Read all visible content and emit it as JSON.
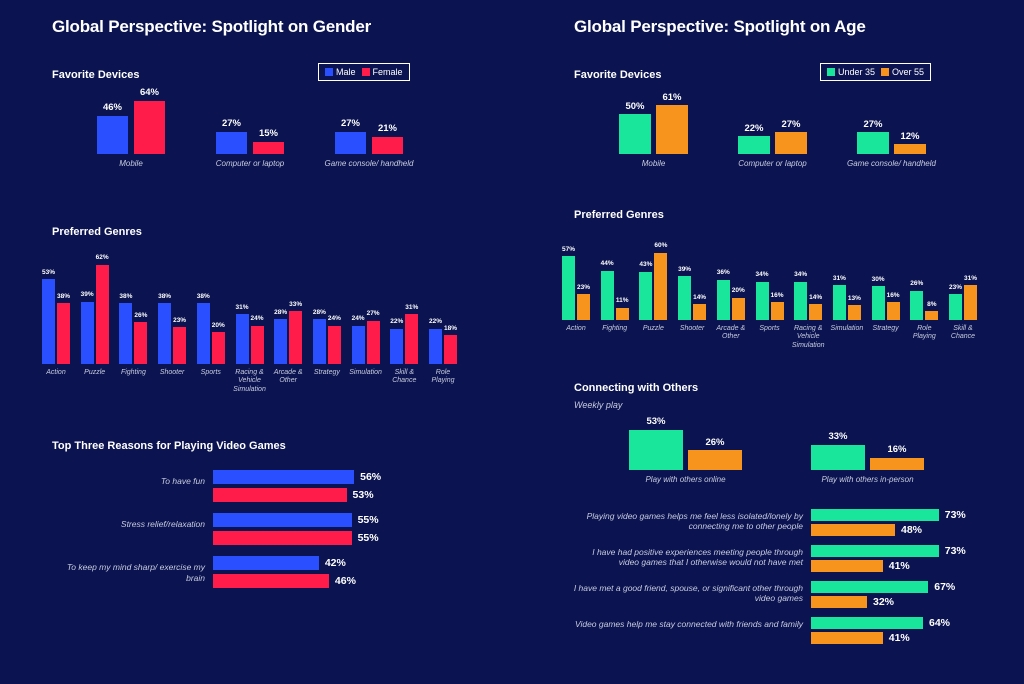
{
  "colors": {
    "background": "#0b1450",
    "male": "#2a4fff",
    "female": "#ff1c4a",
    "under35": "#19e69b",
    "over55": "#f7941e"
  },
  "left": {
    "title": "Global Perspective: Spotlight on Gender",
    "legend": [
      "Male",
      "Female"
    ],
    "devices_title": "Favorite Devices",
    "genres_title": "Preferred Genres",
    "reasons_title": "Top Three Reasons for Playing Video Games"
  },
  "right": {
    "title": "Global Perspective: Spotlight on Age",
    "legend": [
      "Under 35",
      "Over 55"
    ],
    "devices_title": "Favorite Devices",
    "genres_title": "Preferred Genres",
    "connect_title": "Connecting with Others",
    "connect_subtitle": "Weekly play"
  },
  "chart_data": [
    {
      "id": "gender-devices",
      "type": "bar",
      "title": "Favorite Devices",
      "categories": [
        "Mobile",
        "Computer or laptop",
        "Game console/ handheld"
      ],
      "series": [
        {
          "name": "Male",
          "values": [
            46,
            27,
            27
          ]
        },
        {
          "name": "Female",
          "values": [
            64,
            15,
            21
          ]
        }
      ],
      "unit": "%",
      "legend": "top-right"
    },
    {
      "id": "gender-genres",
      "type": "bar",
      "title": "Preferred Genres",
      "categories": [
        "Action",
        "Puzzle",
        "Fighting",
        "Shooter",
        "Sports",
        "Racing & Vehicle Simulation",
        "Arcade & Other",
        "Strategy",
        "Simulation",
        "Skill & Chance",
        "Role Playing"
      ],
      "series": [
        {
          "name": "Male",
          "values": [
            53,
            39,
            38,
            38,
            38,
            31,
            28,
            28,
            24,
            22,
            22
          ]
        },
        {
          "name": "Female",
          "values": [
            38,
            62,
            26,
            23,
            20,
            24,
            33,
            24,
            27,
            31,
            18
          ]
        }
      ],
      "unit": "%"
    },
    {
      "id": "gender-reasons",
      "type": "bar",
      "orientation": "horizontal",
      "title": "Top Three Reasons for Playing Video Games",
      "categories": [
        "To have fun",
        "Stress relief/relaxation",
        "To keep my mind sharp/ exercise my brain"
      ],
      "series": [
        {
          "name": "Male",
          "values": [
            56,
            55,
            42
          ]
        },
        {
          "name": "Female",
          "values": [
            53,
            55,
            46
          ]
        }
      ],
      "unit": "%"
    },
    {
      "id": "age-devices",
      "type": "bar",
      "title": "Favorite Devices",
      "categories": [
        "Mobile",
        "Computer or laptop",
        "Game console/ handheld"
      ],
      "series": [
        {
          "name": "Under 35",
          "values": [
            50,
            22,
            27
          ]
        },
        {
          "name": "Over 55",
          "values": [
            61,
            27,
            12
          ]
        }
      ],
      "unit": "%",
      "legend": "top-right"
    },
    {
      "id": "age-genres",
      "type": "bar",
      "title": "Preferred Genres",
      "categories": [
        "Action",
        "Fighting",
        "Puzzle",
        "Shooter",
        "Arcade & Other",
        "Sports",
        "Racing & Vehicle Simulation",
        "Simulation",
        "Strategy",
        "Role Playing",
        "Skill & Chance"
      ],
      "series": [
        {
          "name": "Under 35",
          "values": [
            57,
            44,
            43,
            39,
            36,
            34,
            34,
            31,
            30,
            26,
            23
          ]
        },
        {
          "name": "Over 55",
          "values": [
            23,
            11,
            60,
            14,
            20,
            16,
            14,
            13,
            16,
            8,
            31
          ]
        }
      ],
      "unit": "%"
    },
    {
      "id": "age-weekly",
      "type": "bar",
      "title": "Weekly play",
      "categories": [
        "Play with others online",
        "Play with others in-person"
      ],
      "series": [
        {
          "name": "Under 35",
          "values": [
            53,
            33
          ]
        },
        {
          "name": "Over 55",
          "values": [
            26,
            16
          ]
        }
      ],
      "unit": "%"
    },
    {
      "id": "age-statements",
      "type": "bar",
      "orientation": "horizontal",
      "categories": [
        "Playing video games helps me feel less isolated/lonely by connecting me to other people",
        "I have had positive experiences meeting people through video games that I otherwise would not have met",
        "I have met a good friend, spouse, or significant other through video games",
        "Video games help me stay connected with friends and family"
      ],
      "series": [
        {
          "name": "Under 35",
          "values": [
            73,
            73,
            67,
            64
          ]
        },
        {
          "name": "Over 55",
          "values": [
            48,
            41,
            32,
            41
          ]
        }
      ],
      "unit": "%"
    }
  ]
}
